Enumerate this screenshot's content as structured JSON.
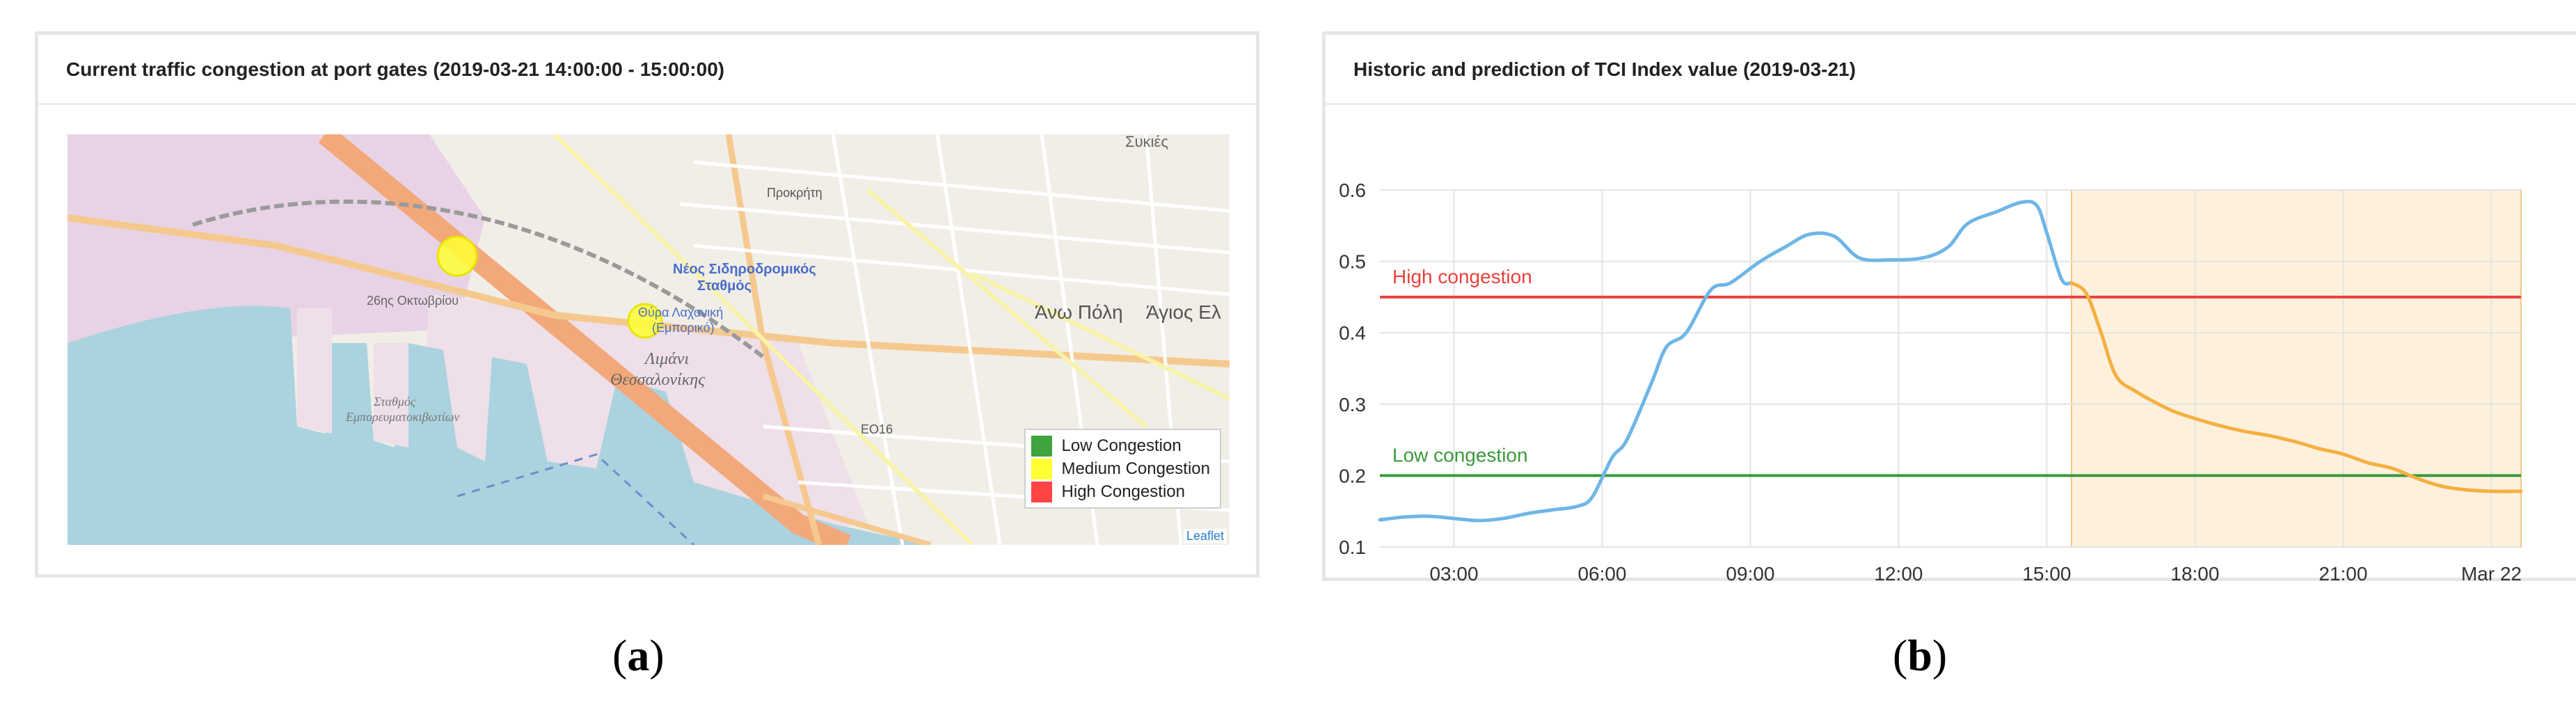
{
  "panel_a": {
    "title": "Current traffic congestion at port gates (2019-03-21 14:00:00 - 15:00:00)",
    "legend": [
      {
        "label": "Low Congestion",
        "color": "#3fa33f"
      },
      {
        "label": "Medium Congestion",
        "color": "#ffff33"
      },
      {
        "label": "High Congestion",
        "color": "#ff4444"
      }
    ],
    "attribution": "Leaflet",
    "map_labels": {
      "station": "Νέος Σιδηροδρομικός",
      "station_2": "Σταθμός",
      "port": "Λιμάνι",
      "port_2": "Θεσσαλονίκης",
      "ano_poli": "Άνω Πόλη",
      "agios": "Άγιος Ελ",
      "eo16": "ΕΟ16",
      "prokimia": "Προκρήτη",
      "road_26oct": "26ης Οκτωβρίου",
      "syka": "Συκιές",
      "gate_label": "Θύρα Λαχανική",
      "gate_label_2": "(Εμπορικό)",
      "stathmos_emp": "Σταθμός",
      "stathmos_emp_2": "Εμπορευματοκιβωτίων"
    },
    "gates": [
      {
        "name": "gate-1",
        "status": "medium"
      },
      {
        "name": "gate-2",
        "status": "medium"
      }
    ],
    "colors": {
      "sea": "#aad3df",
      "port_zone": "#e8d3e6",
      "land": "#f1eee8",
      "highway": "#f3a87a",
      "road": "#f7f3a8",
      "gate": "#ffff33"
    }
  },
  "panel_b": {
    "title": "Historic and prediction of TCI Index value (2019-03-21)",
    "chart_data": {
      "type": "line",
      "title": "Historic and prediction of TCI Index value (2019-03-21)",
      "x_unit": "hours since 2019-03-21 00:00",
      "x_range": [
        1.5,
        24.6
      ],
      "ylim": [
        0.1,
        0.6
      ],
      "y_ticks": [
        0.1,
        0.2,
        0.3,
        0.4,
        0.5,
        0.6
      ],
      "x_ticks": [
        {
          "x": 3,
          "label": "03:00"
        },
        {
          "x": 6,
          "label": "06:00"
        },
        {
          "x": 9,
          "label": "09:00"
        },
        {
          "x": 12,
          "label": "12:00"
        },
        {
          "x": 15,
          "label": "15:00"
        },
        {
          "x": 18,
          "label": "18:00"
        },
        {
          "x": 21,
          "label": "21:00"
        },
        {
          "x": 24,
          "label": "Mar 22"
        }
      ],
      "grid": true,
      "series": [
        {
          "color": "#6fb6e6",
          "points": [
            [
              1.5,
              0.138
            ],
            [
              2.0,
              0.142
            ],
            [
              2.5,
              0.143
            ],
            [
              3.0,
              0.14
            ],
            [
              3.5,
              0.137
            ],
            [
              4.0,
              0.14
            ],
            [
              4.5,
              0.147
            ],
            [
              5.0,
              0.152
            ],
            [
              5.5,
              0.157
            ],
            [
              5.8,
              0.17
            ],
            [
              6.2,
              0.225
            ],
            [
              6.5,
              0.25
            ],
            [
              7.0,
              0.33
            ],
            [
              7.3,
              0.38
            ],
            [
              7.7,
              0.4
            ],
            [
              8.2,
              0.46
            ],
            [
              8.6,
              0.47
            ],
            [
              9.2,
              0.5
            ],
            [
              9.7,
              0.52
            ],
            [
              10.2,
              0.538
            ],
            [
              10.7,
              0.535
            ],
            [
              11.2,
              0.505
            ],
            [
              11.8,
              0.502
            ],
            [
              12.5,
              0.505
            ],
            [
              13.0,
              0.52
            ],
            [
              13.4,
              0.553
            ],
            [
              14.0,
              0.57
            ],
            [
              14.5,
              0.583
            ],
            [
              14.8,
              0.578
            ],
            [
              15.0,
              0.54
            ],
            [
              15.3,
              0.475
            ],
            [
              15.5,
              0.47
            ]
          ]
        },
        {
          "color": "#f5b041",
          "points": [
            [
              15.5,
              0.47
            ],
            [
              15.8,
              0.455
            ],
            [
              16.1,
              0.4
            ],
            [
              16.4,
              0.34
            ],
            [
              16.8,
              0.318
            ],
            [
              17.5,
              0.292
            ],
            [
              18.0,
              0.28
            ],
            [
              18.5,
              0.27
            ],
            [
              19.0,
              0.262
            ],
            [
              19.5,
              0.256
            ],
            [
              20.0,
              0.248
            ],
            [
              20.5,
              0.238
            ],
            [
              21.0,
              0.23
            ],
            [
              21.5,
              0.218
            ],
            [
              22.0,
              0.21
            ],
            [
              22.5,
              0.196
            ],
            [
              23.0,
              0.185
            ],
            [
              23.5,
              0.18
            ],
            [
              24.0,
              0.178
            ],
            [
              24.6,
              0.178
            ]
          ]
        }
      ],
      "thresholds": [
        {
          "name": "High congestion",
          "y": 0.45,
          "color": "#e8413c"
        },
        {
          "name": "Low congestion",
          "y": 0.2,
          "color": "#3a9a3a"
        }
      ],
      "prediction_band": {
        "x_from": 15.5,
        "x_to": 24.6,
        "color": "#fdf1dd"
      }
    }
  },
  "captions": {
    "a": "(a)",
    "a_letter": "a",
    "b": "(b)",
    "b_letter": "b"
  }
}
